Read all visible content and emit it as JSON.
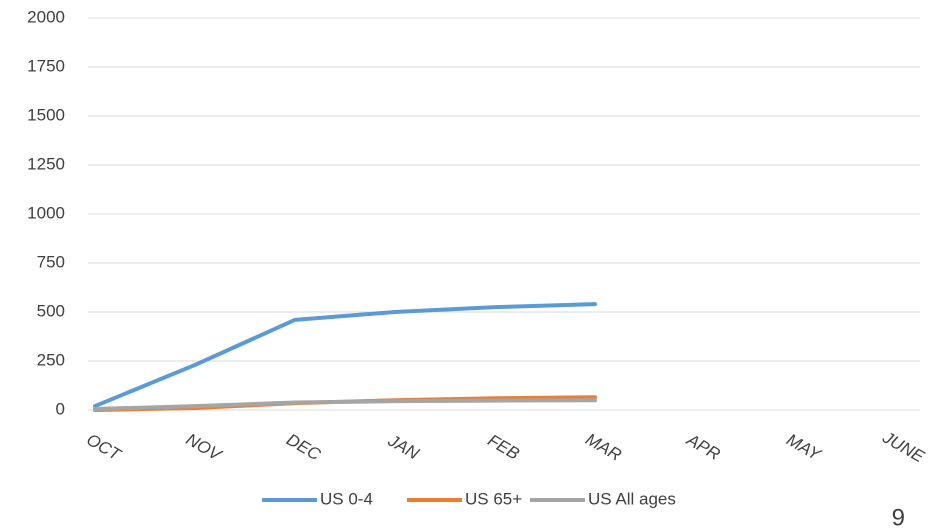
{
  "chart_data": {
    "type": "line",
    "categories": [
      "OCT",
      "NOV",
      "DEC",
      "JAN",
      "FEB",
      "MAR",
      "APR",
      "MAY",
      "JUNE"
    ],
    "series": [
      {
        "name": "US 0-4",
        "color": "#5b9bd5",
        "values": [
          20,
          230,
          460,
          500,
          525,
          540,
          null,
          null,
          null
        ]
      },
      {
        "name": "US 65+",
        "color": "#ed7d31",
        "values": [
          0,
          10,
          35,
          50,
          60,
          65,
          null,
          null,
          null
        ]
      },
      {
        "name": "US All ages",
        "color": "#a5a5a5",
        "values": [
          5,
          20,
          38,
          45,
          48,
          50,
          null,
          null,
          null
        ]
      }
    ],
    "ylim": [
      0,
      2000
    ],
    "yticks": [
      0,
      250,
      500,
      750,
      1000,
      1250,
      1500,
      1750,
      2000
    ],
    "grid": true,
    "legend": "bottom"
  },
  "slide_number": "9"
}
